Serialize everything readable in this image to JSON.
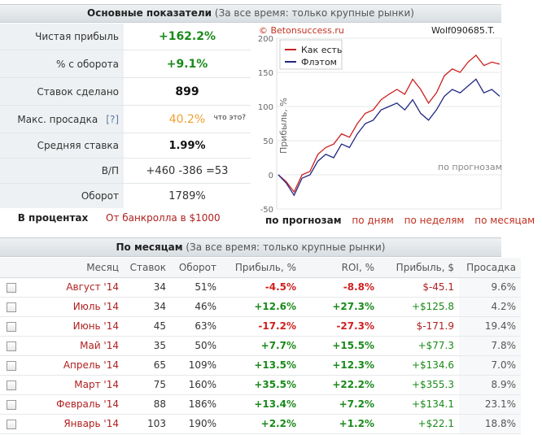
{
  "header_main": {
    "title": "Основные показатели",
    "subtitle": "(За все время: только крупные рынки)"
  },
  "stats": [
    {
      "label": "Чистая прибыль",
      "value": "+162.2%"
    },
    {
      "label": "% с оборота",
      "value": "+9.1%"
    },
    {
      "label": "Ставок сделано",
      "value": "899"
    },
    {
      "label": "Макс. просадка",
      "help": "[?]",
      "value": "40.2%",
      "hint": "что это?"
    },
    {
      "label": "Средняя ставка",
      "value": "1.99%"
    },
    {
      "label": "В/П",
      "value": "+460 -386 =53"
    },
    {
      "label": "Оборот",
      "value": "1789%"
    }
  ],
  "percent": {
    "label": "В процентах",
    "bankroll": "От банкролла в $1000"
  },
  "chart": {
    "site": "© Betonsuccess.ru",
    "user": "Wolf090685.T.",
    "watermark": "по прогнозам",
    "legend": [
      "Как есть",
      "Флэтом"
    ],
    "ylabel": "Прибыль, %",
    "yticks": [
      "200",
      "150",
      "100",
      "50",
      "0",
      "-50"
    ]
  },
  "chart_data": {
    "type": "line",
    "ylabel": "Прибыль, %",
    "ylim": [
      -50,
      200
    ],
    "series": [
      {
        "name": "Как есть",
        "color": "#cc2020",
        "values": [
          0,
          -10,
          -25,
          0,
          5,
          30,
          40,
          45,
          60,
          55,
          75,
          90,
          95,
          110,
          118,
          125,
          118,
          140,
          125,
          105,
          120,
          145,
          155,
          150,
          165,
          175,
          160,
          165,
          162
        ]
      },
      {
        "name": "Флэтом",
        "color": "#202880",
        "values": [
          0,
          -12,
          -30,
          -5,
          0,
          20,
          30,
          25,
          45,
          40,
          60,
          75,
          80,
          95,
          100,
          105,
          95,
          110,
          90,
          80,
          95,
          115,
          125,
          120,
          130,
          140,
          120,
          125,
          115
        ]
      }
    ]
  },
  "chart_tabs": [
    "по прогнозам",
    "по дням",
    "по неделям",
    "по месяцам"
  ],
  "header_months": {
    "title": "По месяцам",
    "subtitle": "(За все время: только крупные рынки)"
  },
  "table": {
    "columns": [
      "Месяц",
      "Ставок",
      "Оборот",
      "Прибыль, %",
      "ROI, %",
      "Прибыль, $",
      "Просадка"
    ],
    "rows": [
      {
        "month": "Август '14",
        "bets": "34",
        "turnover": "51%",
        "profit_pct": "-4.5%",
        "roi": "-8.8%",
        "profit_usd": "$-45.1",
        "drawdown": "9.6%"
      },
      {
        "month": "Июль '14",
        "bets": "34",
        "turnover": "46%",
        "profit_pct": "+12.6%",
        "roi": "+27.3%",
        "profit_usd": "+$125.8",
        "drawdown": "4.2%"
      },
      {
        "month": "Июнь '14",
        "bets": "45",
        "turnover": "63%",
        "profit_pct": "-17.2%",
        "roi": "-27.3%",
        "profit_usd": "$-171.9",
        "drawdown": "19.4%"
      },
      {
        "month": "Май '14",
        "bets": "35",
        "turnover": "50%",
        "profit_pct": "+7.7%",
        "roi": "+15.5%",
        "profit_usd": "+$77.3",
        "drawdown": "7.8%"
      },
      {
        "month": "Апрель '14",
        "bets": "65",
        "turnover": "109%",
        "profit_pct": "+13.5%",
        "roi": "+12.3%",
        "profit_usd": "+$134.6",
        "drawdown": "7.0%"
      },
      {
        "month": "Март '14",
        "bets": "75",
        "turnover": "160%",
        "profit_pct": "+35.5%",
        "roi": "+22.2%",
        "profit_usd": "+$355.3",
        "drawdown": "8.9%"
      },
      {
        "month": "Февраль '14",
        "bets": "88",
        "turnover": "186%",
        "profit_pct": "+13.4%",
        "roi": "+7.2%",
        "profit_usd": "+$134.1",
        "drawdown": "23.1%"
      },
      {
        "month": "Январь '14",
        "bets": "103",
        "turnover": "190%",
        "profit_pct": "+2.2%",
        "roi": "+1.2%",
        "profit_usd": "+$22.1",
        "drawdown": "18.8%"
      }
    ]
  }
}
